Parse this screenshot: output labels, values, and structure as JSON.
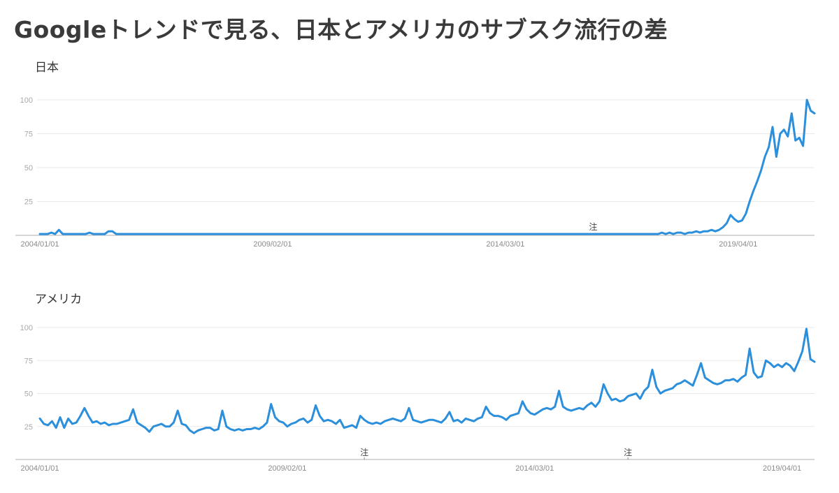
{
  "title": "Googleトレンドで見る、日本とアメリカのサブスク流行の差",
  "colors": {
    "line": "#2b8fdb",
    "grid": "#e9e9e9",
    "axis": "#bdbdbd"
  },
  "chart_data": [
    {
      "type": "line",
      "title": "日本",
      "x_tick_labels": [
        "2004/01/01",
        "2009/02/01",
        "2014/03/01",
        "2019/04/01"
      ],
      "y_ticks": [
        25,
        50,
        75,
        100
      ],
      "ylim": [
        0,
        100
      ],
      "grid": true,
      "annotations": [
        {
          "text": "注",
          "x": "2016-02"
        }
      ],
      "series": [
        {
          "x_start": "2004-01",
          "interval": "month",
          "values": [
            1,
            1,
            1,
            2,
            1,
            4,
            1,
            1,
            1,
            1,
            1,
            1,
            1,
            2,
            1,
            1,
            1,
            1,
            3,
            3,
            1,
            1,
            1,
            1,
            1,
            1,
            1,
            1,
            1,
            1,
            1,
            1,
            1,
            1,
            1,
            1,
            1,
            1,
            1,
            1,
            1,
            1,
            1,
            1,
            1,
            1,
            1,
            1,
            1,
            1,
            1,
            1,
            1,
            1,
            1,
            1,
            1,
            1,
            1,
            1,
            1,
            1,
            1,
            1,
            1,
            1,
            1,
            1,
            1,
            1,
            1,
            1,
            1,
            1,
            1,
            1,
            1,
            1,
            1,
            1,
            1,
            1,
            1,
            1,
            1,
            1,
            1,
            1,
            1,
            1,
            1,
            1,
            1,
            1,
            1,
            1,
            1,
            1,
            1,
            1,
            1,
            1,
            1,
            1,
            1,
            1,
            1,
            1,
            1,
            1,
            1,
            1,
            1,
            1,
            1,
            1,
            1,
            1,
            1,
            1,
            1,
            1,
            1,
            1,
            1,
            1,
            1,
            1,
            1,
            1,
            1,
            1,
            1,
            1,
            1,
            1,
            1,
            1,
            1,
            1,
            1,
            1,
            1,
            1,
            1,
            1,
            1,
            1,
            1,
            1,
            1,
            1,
            1,
            1,
            1,
            1,
            1,
            1,
            1,
            1,
            1,
            1,
            1,
            2,
            1,
            2,
            1,
            2,
            2,
            1,
            2,
            2,
            3,
            2,
            3,
            3,
            4,
            3,
            4,
            6,
            9,
            15,
            12,
            10,
            11,
            16,
            25,
            33,
            40,
            48,
            58,
            65,
            80,
            58,
            75,
            78,
            73,
            90,
            70,
            72,
            66,
            100,
            92,
            90
          ]
        }
      ]
    },
    {
      "type": "line",
      "title": "アメリカ",
      "x_tick_labels": [
        "2004/01/01",
        "2009/02/01",
        "2014/03/01",
        "2019/04/01"
      ],
      "y_ticks": [
        25,
        50,
        75,
        100
      ],
      "ylim": [
        0,
        100
      ],
      "grid": true,
      "annotations": [
        {
          "text": "注",
          "x": "2010-09"
        },
        {
          "text": "注",
          "x": "2016-02"
        }
      ],
      "series": [
        {
          "x_start": "2004-01",
          "interval": "month",
          "values": [
            31,
            27,
            26,
            29,
            24,
            32,
            24,
            31,
            27,
            28,
            33,
            39,
            33,
            28,
            29,
            27,
            28,
            26,
            27,
            27,
            28,
            29,
            30,
            38,
            28,
            26,
            24,
            21,
            25,
            26,
            27,
            25,
            25,
            28,
            37,
            27,
            26,
            22,
            20,
            22,
            23,
            24,
            24,
            22,
            23,
            37,
            25,
            23,
            22,
            23,
            22,
            23,
            23,
            24,
            23,
            25,
            28,
            42,
            32,
            29,
            28,
            25,
            27,
            28,
            30,
            31,
            28,
            30,
            41,
            33,
            29,
            30,
            29,
            27,
            30,
            24,
            25,
            26,
            24,
            33,
            30,
            28,
            27,
            28,
            27,
            29,
            30,
            31,
            30,
            29,
            31,
            39,
            30,
            29,
            28,
            29,
            30,
            30,
            29,
            28,
            31,
            36,
            29,
            30,
            28,
            31,
            30,
            29,
            31,
            32,
            40,
            35,
            33,
            33,
            32,
            30,
            33,
            34,
            35,
            44,
            38,
            35,
            34,
            36,
            38,
            39,
            38,
            40,
            52,
            40,
            38,
            37,
            38,
            39,
            38,
            41,
            43,
            40,
            44,
            57,
            50,
            45,
            46,
            44,
            45,
            48,
            49,
            50,
            46,
            52,
            55,
            68,
            55,
            50,
            52,
            53,
            54,
            57,
            58,
            60,
            58,
            56,
            64,
            73,
            62,
            60,
            58,
            57,
            58,
            60,
            60,
            61,
            59,
            62,
            64,
            84,
            66,
            62,
            63,
            75,
            73,
            70,
            72,
            70,
            73,
            71,
            67,
            74,
            82,
            99,
            76,
            74
          ]
        }
      ]
    }
  ]
}
